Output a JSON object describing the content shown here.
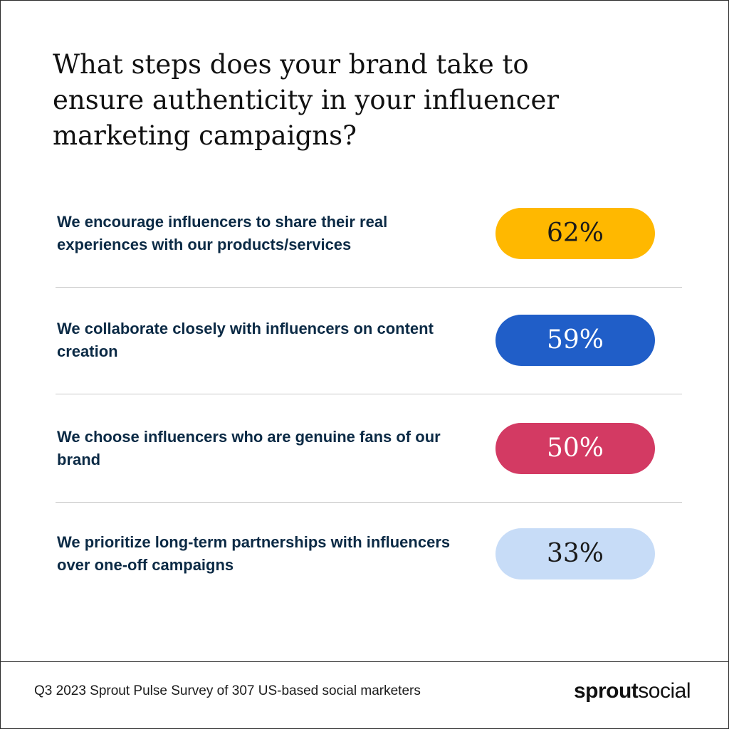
{
  "chart_data": {
    "type": "pill-list",
    "title": "What steps does your brand take to ensure authenticity in your influencer marketing campaigns?",
    "categories": [
      "We encourage influencers to share their real experiences with our products/services",
      "We collaborate closely with influencers on content creation",
      "We choose influencers who are genuine fans of our brand",
      "We prioritize long-term partnerships with influencers over one-off campaigns"
    ],
    "values": [
      62,
      59,
      50,
      33
    ],
    "value_labels": [
      "62%",
      "59%",
      "50%",
      "33%"
    ],
    "colors": [
      "#ffb800",
      "#205ec8",
      "#d33a63",
      "#c7dcf7"
    ],
    "text_colors": [
      "#1a1a1a",
      "#ffffff",
      "#ffffff",
      "#1a1a1a"
    ],
    "source": "Q3 2023 Sprout Pulse Survey of 307 US-based social marketers",
    "brand": [
      "sprout",
      "social"
    ]
  }
}
